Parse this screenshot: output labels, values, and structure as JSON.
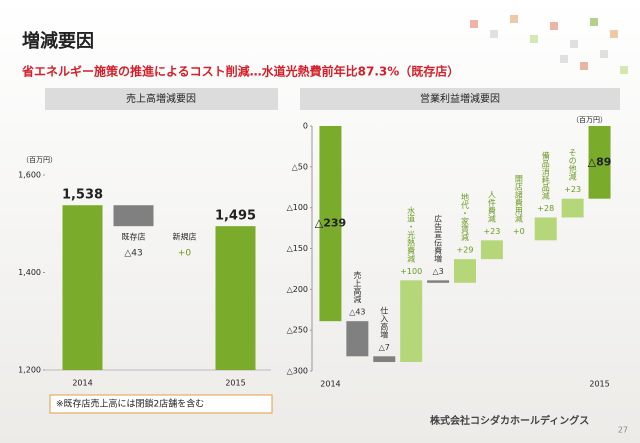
{
  "header": {
    "title": "増減要因",
    "subtitle": "省エネルギー施策の推進によるコスト削減…水道光熱費前年比87.3%（既存店）",
    "note": "※既存店売上高には閉鎖2店舗を含む",
    "company": "株式会社コシダカホールディングス",
    "page": "27"
  },
  "chart_data": [
    {
      "type": "waterfall",
      "title": "売上高増減要因",
      "ylabel": "（百万円）",
      "categories": [
        "2014",
        "既存店",
        "新規店",
        "2015"
      ],
      "values": [
        1538,
        -43,
        0,
        1495
      ],
      "value_labels": [
        "1,538",
        "△43",
        "+0",
        "1,495"
      ],
      "colors": {
        "total": "#7aab2b",
        "increase": "#b5d77a",
        "decrease": "#808080"
      },
      "ylim": [
        1200,
        1600
      ],
      "yticks": [
        {
          "value": 1200,
          "label": "1,200"
        },
        {
          "value": 1400,
          "label": "1,400"
        },
        {
          "value": 1600,
          "label": "1,600"
        }
      ]
    },
    {
      "type": "waterfall",
      "title": "営業利益増減要因",
      "ylabel": "（百万円）",
      "categories": [
        "2014",
        "売上高減",
        "仕入高増",
        "水道・光熱費減",
        "広告宣伝費増",
        "地代・家賃減",
        "人件費減",
        "開店諸費用減",
        "備品消耗品減",
        "その他減",
        "2015"
      ],
      "values": [
        -239,
        -43,
        -7,
        100,
        -3,
        29,
        23,
        0,
        28,
        23,
        -89
      ],
      "value_labels": [
        "△239",
        "△43",
        "△7",
        "+100",
        "△3",
        "+29",
        "+23",
        "+0",
        "+28",
        "+23",
        "△89"
      ],
      "colors": {
        "total": "#7aab2b",
        "increase": "#b5d77a",
        "decrease": "#808080"
      },
      "ylim": [
        -300,
        0
      ],
      "yticks": [
        {
          "value": -300,
          "label": "△300"
        },
        {
          "value": -250,
          "label": "△250"
        },
        {
          "value": -200,
          "label": "△200"
        },
        {
          "value": -150,
          "label": "△150"
        },
        {
          "value": -100,
          "label": "△100"
        },
        {
          "value": -50,
          "label": "△50"
        },
        0
      ]
    }
  ]
}
